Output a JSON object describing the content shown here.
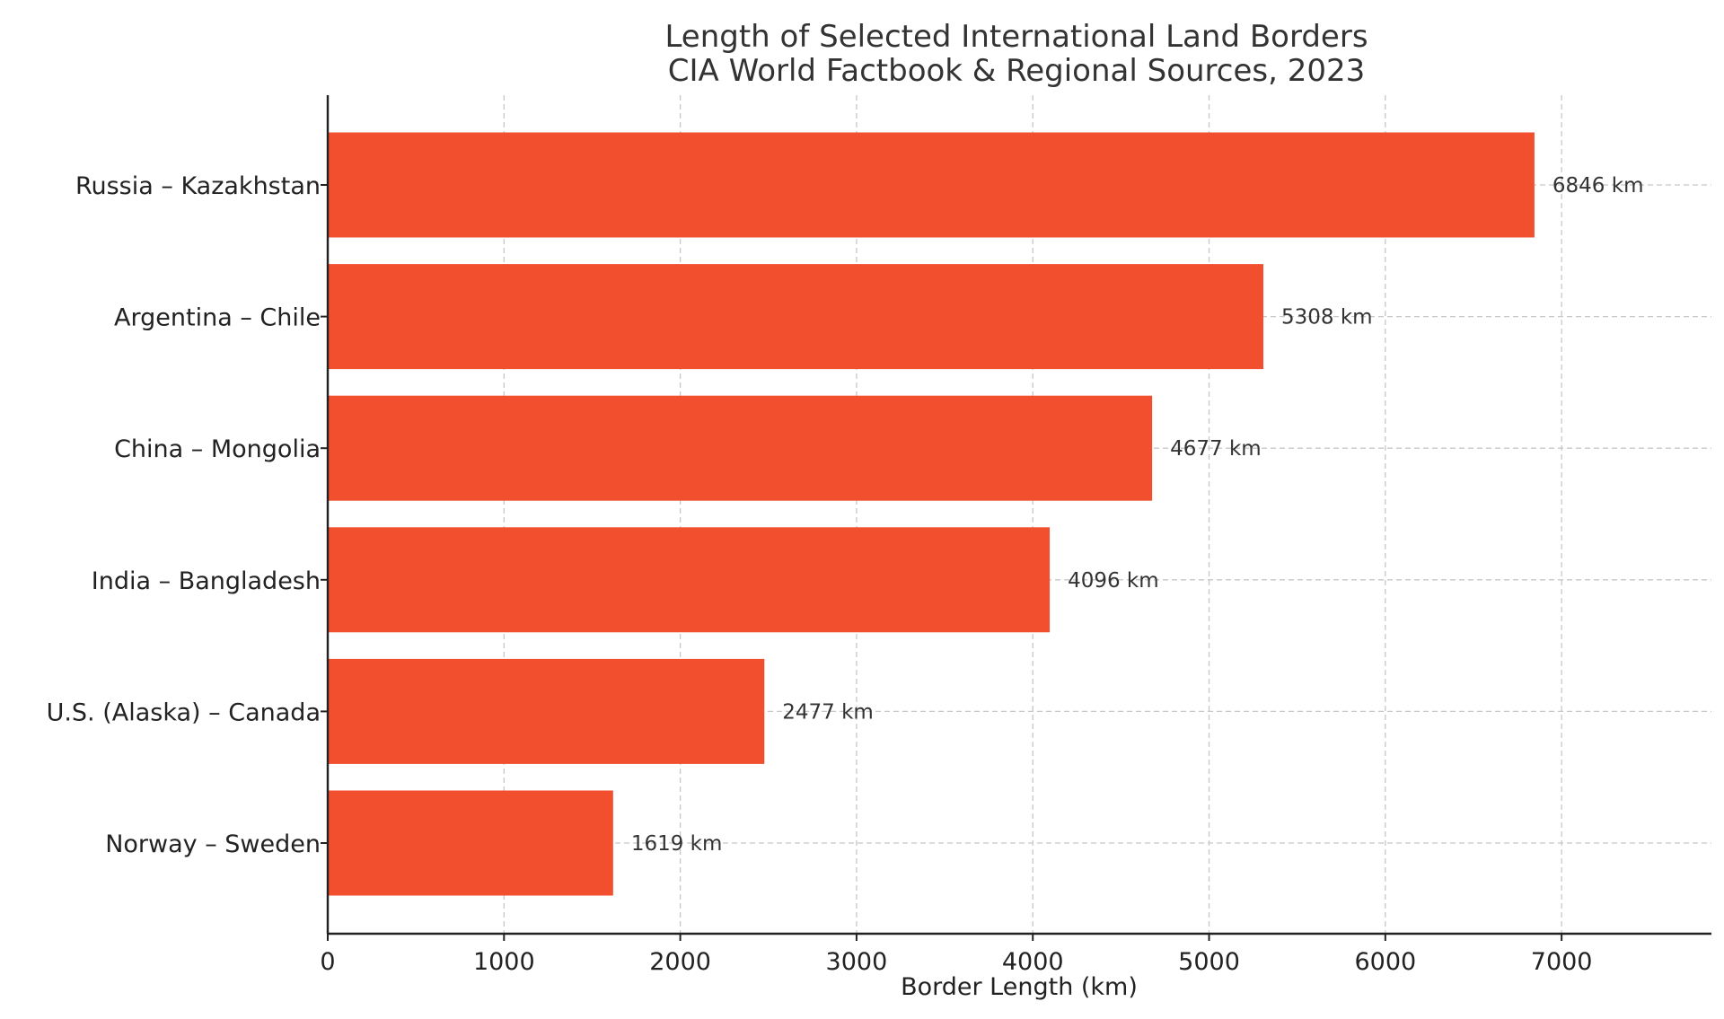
{
  "chart_data": {
    "type": "bar",
    "orientation": "horizontal",
    "title": "Length of Selected International Land Borders",
    "subtitle": "CIA World Factbook & Regional Sources, 2023",
    "xlabel": "Border Length (km)",
    "ylabel": "",
    "categories": [
      "Russia – Kazakhstan",
      "Argentina – Chile",
      "China – Mongolia",
      "India – Bangladesh",
      "U.S. (Alaska) – Canada",
      "Norway – Sweden"
    ],
    "values": [
      6846,
      5308,
      4677,
      4096,
      2477,
      1619
    ],
    "data_labels": [
      "6846 km",
      "5308 km",
      "4677 km",
      "4096 km",
      "2477 km",
      "1619 km"
    ],
    "xlim": [
      0,
      7850
    ],
    "xticks": [
      0,
      1000,
      2000,
      3000,
      4000,
      5000,
      6000,
      7000
    ],
    "xtick_labels": [
      "0",
      "1000",
      "2000",
      "3000",
      "4000",
      "5000",
      "6000",
      "7000"
    ],
    "grid": true,
    "bar_color": "#f24f2f"
  }
}
